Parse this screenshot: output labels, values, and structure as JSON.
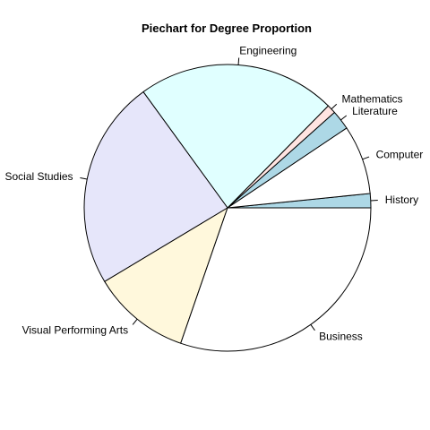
{
  "chart_data": {
    "type": "pie",
    "title": "Piechart for Degree Proportion",
    "direction": "counterclockwise",
    "start_angle_deg": 0,
    "slices": [
      {
        "label": "History",
        "value": 1.6,
        "color": "#ADD8E6"
      },
      {
        "label": "Computer",
        "value": 7.8,
        "color": "#FFFFFF"
      },
      {
        "label": "Literature",
        "value": 2.2,
        "color": "#ADD8E6"
      },
      {
        "label": "Mathematics",
        "value": 1.0,
        "color": "#FFE4E1"
      },
      {
        "label": "Engineering",
        "value": 22.4,
        "color": "#E0FFFF"
      },
      {
        "label": "Social Studies",
        "value": 23.6,
        "color": "#E6E6FA"
      },
      {
        "label": "Visual Performing Arts",
        "value": 11.1,
        "color": "#FFF8DC"
      },
      {
        "label": "Business",
        "value": 30.3,
        "color": "#FFFFFF"
      }
    ]
  }
}
